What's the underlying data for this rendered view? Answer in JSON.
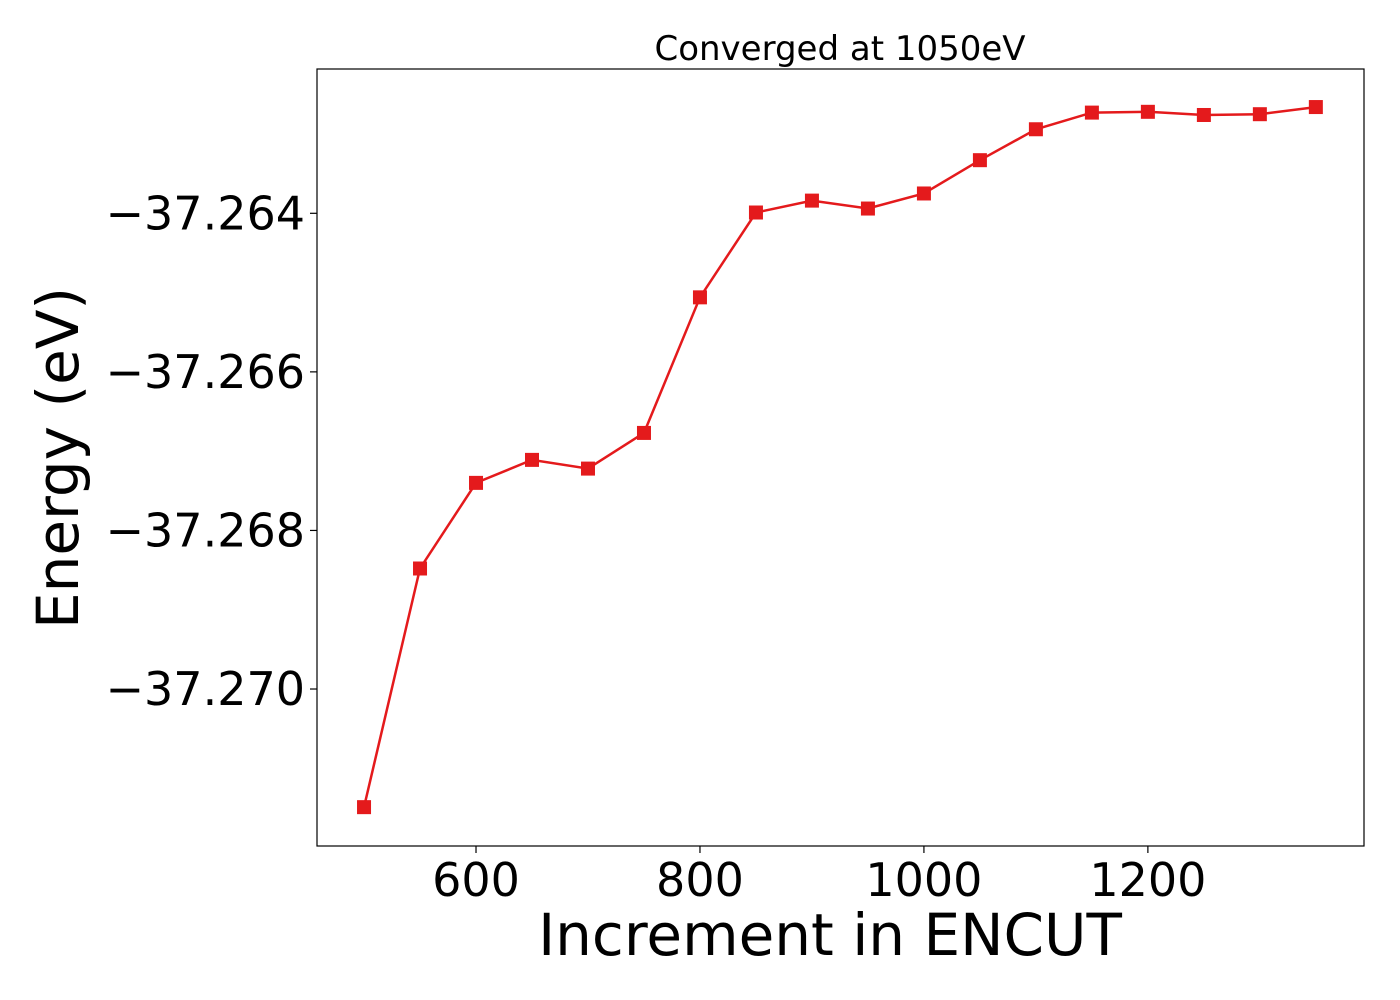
{
  "chart_data": {
    "type": "line",
    "title": "Converged at 1050eV",
    "xlabel": "Increment in ENCUT",
    "ylabel": "Energy (eV)",
    "xlim": [
      458,
      1393
    ],
    "ylim": [
      -37.27198,
      -37.26218
    ],
    "x_ticks": [
      {
        "value": 600,
        "label": "600"
      },
      {
        "value": 800,
        "label": "800"
      },
      {
        "value": 1000,
        "label": "1000"
      },
      {
        "value": 1200,
        "label": "1200"
      }
    ],
    "y_ticks": [
      {
        "value": -37.264,
        "label": "−37.264"
      },
      {
        "value": -37.266,
        "label": "−37.266"
      },
      {
        "value": -37.268,
        "label": "−37.268"
      },
      {
        "value": -37.27,
        "label": "−37.270"
      }
    ],
    "grid": false,
    "marker": "square",
    "series": [
      {
        "color": "#e41a1c",
        "x": [
          500,
          550,
          600,
          650,
          700,
          750,
          800,
          850,
          900,
          950,
          1000,
          1050,
          1100,
          1150,
          1200,
          1250,
          1300,
          1350
        ],
        "y": [
          -37.27149,
          -37.26848,
          -37.2674,
          -37.26711,
          -37.26722,
          -37.26677,
          -37.26506,
          -37.26399,
          -37.26384,
          -37.26394,
          -37.26375,
          -37.26333,
          -37.26294,
          -37.26273,
          -37.26272,
          -37.26276,
          -37.26275,
          -37.26266
        ]
      }
    ]
  }
}
